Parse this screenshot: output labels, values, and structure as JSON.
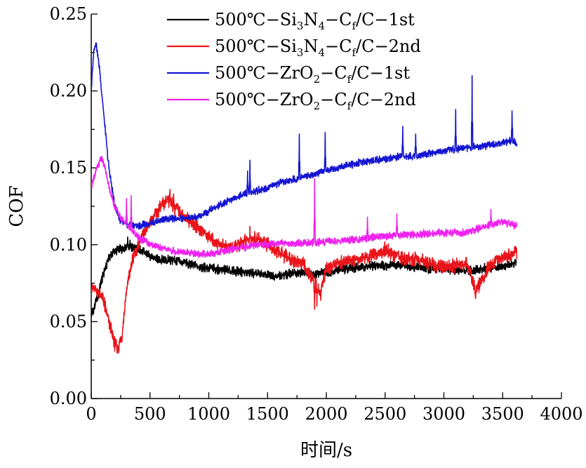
{
  "chart_data": {
    "type": "line",
    "title": "",
    "xlabel": "时间/s",
    "ylabel": "COF",
    "xlim": [
      0,
      4000
    ],
    "ylim": [
      0,
      0.25
    ],
    "grid": false,
    "legend_position": "top-right",
    "x_ticks": [
      0,
      500,
      1000,
      1500,
      2000,
      2500,
      3000,
      3500,
      4000
    ],
    "x_tick_labels": [
      "0",
      "500",
      "1000",
      "1500",
      "2000",
      "2500",
      "3000",
      "3500",
      "4000"
    ],
    "y_ticks": [
      0,
      0.05,
      0.1,
      0.15,
      0.2,
      0.25
    ],
    "y_tick_labels": [
      "0.00",
      "0.05",
      "0.10",
      "0.15",
      "0.20",
      "0.25"
    ],
    "series": [
      {
        "name": "500℃-Si3N4-Cf/C-1st",
        "legend_parts": [
          [
            "500℃−Si",
            ""
          ],
          [
            "3",
            "sub"
          ],
          [
            "N",
            ""
          ],
          [
            "4",
            "sub"
          ],
          [
            "−C",
            ""
          ],
          [
            "f",
            "sub"
          ],
          [
            "/C−1st",
            ""
          ]
        ],
        "color": "#000000",
        "x": [
          0,
          30,
          60,
          100,
          150,
          200,
          250,
          300,
          350,
          400,
          500,
          600,
          700,
          800,
          900,
          1000,
          1100,
          1200,
          1300,
          1400,
          1500,
          1600,
          1700,
          1800,
          1900,
          2000,
          2200,
          2400,
          2600,
          2800,
          3000,
          3200,
          3400,
          3620
        ],
        "y": [
          0.055,
          0.06,
          0.068,
          0.08,
          0.092,
          0.096,
          0.097,
          0.099,
          0.098,
          0.097,
          0.093,
          0.09,
          0.09,
          0.088,
          0.086,
          0.085,
          0.084,
          0.083,
          0.082,
          0.081,
          0.08,
          0.08,
          0.081,
          0.082,
          0.081,
          0.082,
          0.085,
          0.086,
          0.087,
          0.085,
          0.084,
          0.083,
          0.085,
          0.088
        ]
      },
      {
        "name": "500℃-Si3N4-Cf/C-2nd",
        "legend_parts": [
          [
            "500℃−Si",
            ""
          ],
          [
            "3",
            "sub"
          ],
          [
            "N",
            ""
          ],
          [
            "4",
            "sub"
          ],
          [
            "−C",
            ""
          ],
          [
            "f",
            "sub"
          ],
          [
            "/C−2nd",
            ""
          ]
        ],
        "color": "#e8141a",
        "x": [
          0,
          50,
          100,
          150,
          200,
          230,
          260,
          300,
          350,
          400,
          500,
          600,
          650,
          700,
          800,
          900,
          1000,
          1100,
          1200,
          1300,
          1400,
          1500,
          1600,
          1700,
          1800,
          1900,
          1950,
          2000,
          2200,
          2400,
          2500,
          2600,
          2800,
          3000,
          3200,
          3270,
          3400,
          3620
        ],
        "y": [
          0.072,
          0.07,
          0.065,
          0.05,
          0.035,
          0.033,
          0.04,
          0.07,
          0.09,
          0.1,
          0.115,
          0.125,
          0.13,
          0.125,
          0.118,
          0.112,
          0.105,
          0.1,
          0.098,
          0.102,
          0.104,
          0.1,
          0.095,
          0.09,
          0.088,
          0.075,
          0.068,
          0.085,
          0.09,
          0.093,
          0.097,
          0.092,
          0.09,
          0.085,
          0.088,
          0.07,
          0.088,
          0.095
        ]
      },
      {
        "name": "500℃-ZrO2-Cf/C-1st",
        "legend_parts": [
          [
            "500℃−ZrO",
            ""
          ],
          [
            "2",
            "sub"
          ],
          [
            "−C",
            ""
          ],
          [
            "f",
            "sub"
          ],
          [
            "/C−1st",
            ""
          ]
        ],
        "color": "#1414d2",
        "x": [
          0,
          20,
          40,
          70,
          100,
          150,
          200,
          250,
          300,
          400,
          500,
          600,
          700,
          800,
          900,
          1000,
          1100,
          1200,
          1300,
          1400,
          1500,
          1600,
          1700,
          1800,
          1900,
          2000,
          2200,
          2400,
          2600,
          2800,
          3000,
          3200,
          3400,
          3600,
          3620
        ],
        "y": [
          0.2,
          0.225,
          0.232,
          0.215,
          0.19,
          0.15,
          0.125,
          0.115,
          0.113,
          0.112,
          0.114,
          0.116,
          0.117,
          0.117,
          0.118,
          0.122,
          0.126,
          0.13,
          0.133,
          0.135,
          0.137,
          0.14,
          0.142,
          0.144,
          0.146,
          0.148,
          0.152,
          0.155,
          0.157,
          0.158,
          0.161,
          0.163,
          0.165,
          0.168,
          0.164
        ]
      },
      {
        "name": "500℃-ZrO2-Cf/C-2nd",
        "legend_parts": [
          [
            "500℃−ZrO",
            ""
          ],
          [
            "2",
            "sub"
          ],
          [
            "−C",
            ""
          ],
          [
            "f",
            "sub"
          ],
          [
            "/C−2nd",
            ""
          ]
        ],
        "color": "#ee22ee",
        "x": [
          0,
          20,
          50,
          80,
          100,
          130,
          160,
          200,
          250,
          300,
          400,
          500,
          600,
          700,
          800,
          900,
          1000,
          1200,
          1400,
          1600,
          1800,
          2000,
          2200,
          2400,
          2600,
          2800,
          3000,
          3200,
          3400,
          3500,
          3620
        ],
        "y": [
          0.138,
          0.143,
          0.15,
          0.156,
          0.155,
          0.145,
          0.135,
          0.125,
          0.118,
          0.113,
          0.105,
          0.1,
          0.098,
          0.096,
          0.095,
          0.094,
          0.094,
          0.097,
          0.1,
          0.101,
          0.101,
          0.102,
          0.103,
          0.105,
          0.106,
          0.107,
          0.108,
          0.108,
          0.113,
          0.115,
          0.112
        ]
      }
    ],
    "spikes": [
      {
        "series": 0,
        "x": [
          310,
          330
        ],
        "y": [
          0.105,
          0.103
        ]
      },
      {
        "series": 1,
        "x": [
          670,
          700,
          1350,
          1900,
          1920,
          3270
        ],
        "y": [
          0.136,
          0.133,
          0.112,
          0.058,
          0.06,
          0.065
        ]
      },
      {
        "series": 2,
        "x": [
          1330,
          1350,
          1770,
          1990,
          2650,
          2760,
          3100,
          3240,
          3580
        ],
        "y": [
          0.148,
          0.155,
          0.172,
          0.173,
          0.177,
          0.172,
          0.188,
          0.21,
          0.187
        ]
      },
      {
        "series": 3,
        "x": [
          300,
          340,
          1900,
          2350,
          2600,
          3400
        ],
        "y": [
          0.13,
          0.132,
          0.143,
          0.118,
          0.12,
          0.123
        ]
      }
    ]
  }
}
